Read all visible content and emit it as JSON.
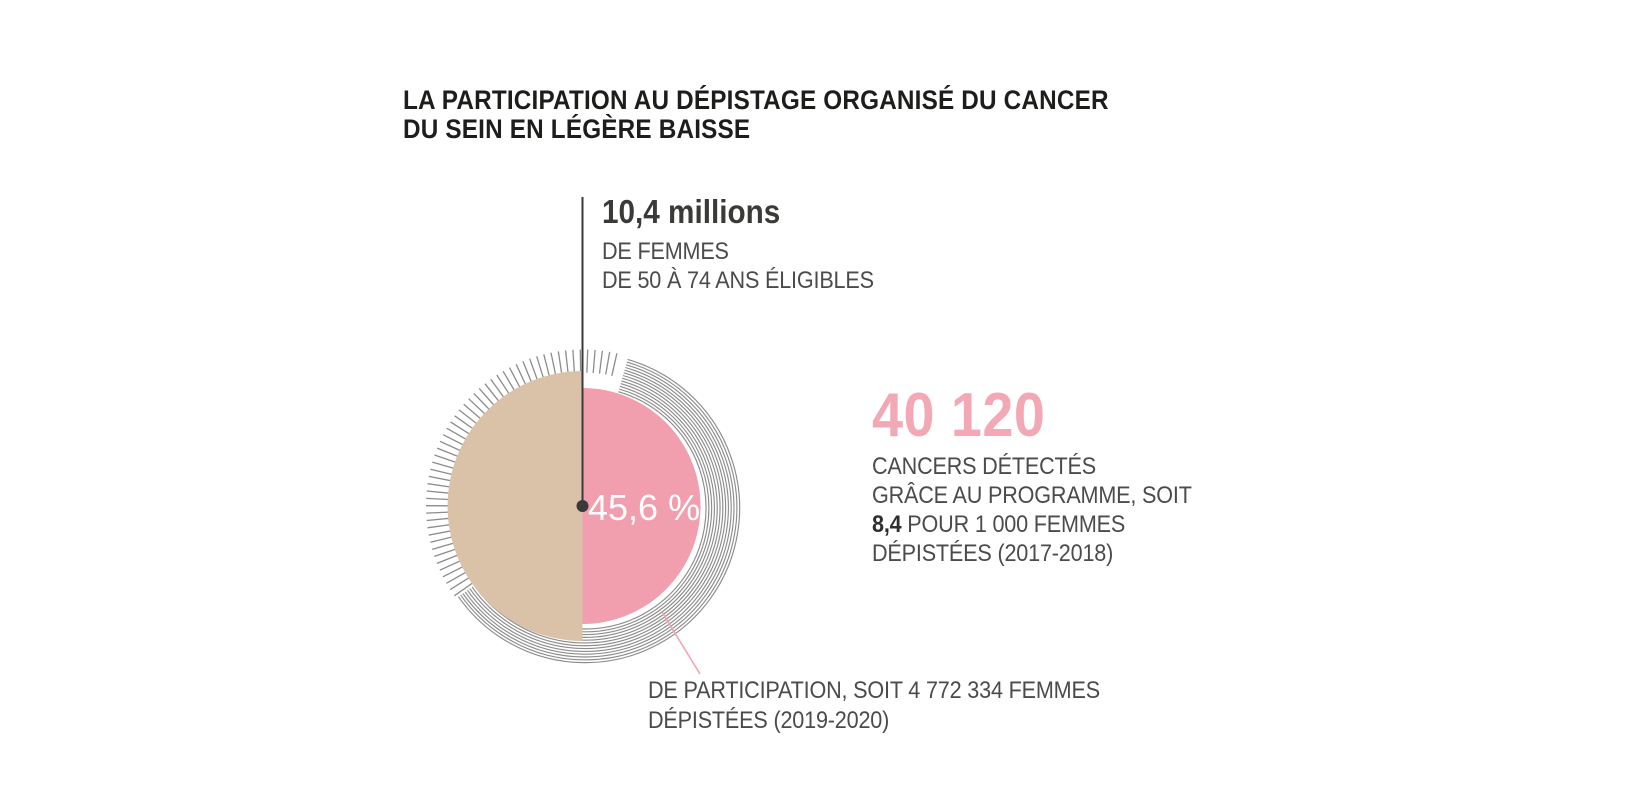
{
  "title": {
    "line1": "LA PARTICIPATION AU DÉPISTAGE ORGANISÉ DU CANCER",
    "line2": "DU SEIN EN LÉGÈRE BAISSE"
  },
  "eligible": {
    "value": "10,4 millions",
    "line1": "DE FEMMES",
    "line2": "DE 50 À 74 ANS ÉLIGIBLES"
  },
  "participation": {
    "rate_label": "45,6 %",
    "caption_line1": "DE PARTICIPATION, SOIT 4 772 334 FEMMES",
    "caption_line2": "DÉPISTÉES (2019-2020)"
  },
  "cancers": {
    "value": "40 120",
    "line1": "CANCERS DÉTECTÉS",
    "line2": "GRÂCE AU PROGRAMME, SOIT",
    "stat_bold": "8,4",
    "stat_rest": " POUR 1 000 FEMMES",
    "line4": "DÉPISTÉES (2017-2018)"
  },
  "colors": {
    "pie_pink": "#f19fae",
    "number_pink": "#f3a9b5",
    "leader_pink": "#f3a4b2",
    "beige": "#dac2a8",
    "dark": "#3a3a3a",
    "hatch": "#8c8c8c",
    "title_text": "#1d1d1b",
    "body_text": "#4b4b4b",
    "white": "#ffffff"
  },
  "chart_data": {
    "type": "pie",
    "title": "LA PARTICIPATION AU DÉPISTAGE ORGANISÉ DU CANCER DU SEIN EN LÉGÈRE BAISSE",
    "slices": [
      {
        "label": "DE PARTICIPATION, SOIT 4 772 334 FEMMES DÉPISTÉES (2019-2020)",
        "value_pct": 45.6,
        "color": "#f19fae"
      },
      {
        "label": "",
        "value_pct": 54.4,
        "color": "#dac2a8"
      }
    ],
    "center_label": "45,6 %",
    "annotations": [
      {
        "text": "10,4 millions DE FEMMES DE 50 À 74 ANS ÉLIGIBLES",
        "target": "whole circle"
      },
      {
        "text": "40 120 CANCERS DÉTECTÉS GRÂCE AU PROGRAMME, SOIT 8,4 POUR 1 000 FEMMES DÉPISTÉES (2017-2018)",
        "target": "program results"
      }
    ],
    "legend_position": "none",
    "values_numeric": {
      "eligible_women_millions": 10.4,
      "participation_pct": 45.6,
      "women_screened_2019_2020": 4772334,
      "cancers_detected": 40120,
      "per_1000_screened_2017_2018": 8.4
    }
  }
}
